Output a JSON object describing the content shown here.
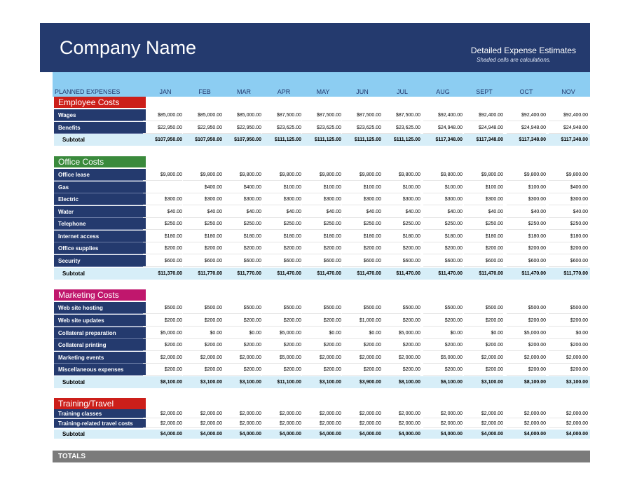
{
  "header": {
    "company": "Company Name",
    "subtitle": "Detailed Expense Estimates",
    "note": "Shaded cells are calculations."
  },
  "table": {
    "caption": "PLANNED EXPENSES",
    "months": [
      "JAN",
      "FEB",
      "MAR",
      "APR",
      "MAY",
      "JUN",
      "JUL",
      "AUG",
      "SEPT",
      "OCT",
      "NOV"
    ]
  },
  "colors": {
    "banner": "#243a6e",
    "header_band": "#8ccdf2",
    "subtotal_shade": "#d7eef8",
    "totals_bar": "#7b7b7b"
  },
  "sections": [
    {
      "title": "Employee Costs",
      "color": "#cc1f1a",
      "rows": [
        {
          "label": "Wages",
          "values": [
            "$85,000.00",
            "$85,000.00",
            "$85,000.00",
            "$87,500.00",
            "$87,500.00",
            "$87,500.00",
            "$87,500.00",
            "$92,400.00",
            "$92,400.00",
            "$92,400.00",
            "$92,400.00"
          ]
        },
        {
          "label": "Benefits",
          "values": [
            "$22,950.00",
            "$22,950.00",
            "$22,950.00",
            "$23,625.00",
            "$23,625.00",
            "$23,625.00",
            "$23,625.00",
            "$24,948.00",
            "$24,948.00",
            "$24,948.00",
            "$24,948.00"
          ]
        }
      ],
      "subtotal": {
        "label": "Subtotal",
        "values": [
          "$107,950.00",
          "$107,950.00",
          "$107,950.00",
          "$111,125.00",
          "$111,125.00",
          "$111,125.00",
          "$111,125.00",
          "$117,348.00",
          "$117,348.00",
          "$117,348.00",
          "$117,348.00"
        ]
      }
    },
    {
      "title": "Office Costs",
      "color": "#3a8a3c",
      "rows": [
        {
          "label": "Office lease",
          "values": [
            "$9,800.00",
            "$9,800.00",
            "$9,800.00",
            "$9,800.00",
            "$9,800.00",
            "$9,800.00",
            "$9,800.00",
            "$9,800.00",
            "$9,800.00",
            "$9,800.00",
            "$9,800.00"
          ]
        },
        {
          "label": "Gas",
          "values": [
            "",
            "$400.00",
            "$400.00",
            "$100.00",
            "$100.00",
            "$100.00",
            "$100.00",
            "$100.00",
            "$100.00",
            "$100.00",
            "$400.00"
          ]
        },
        {
          "label": "Electric",
          "values": [
            "$300.00",
            "$300.00",
            "$300.00",
            "$300.00",
            "$300.00",
            "$300.00",
            "$300.00",
            "$300.00",
            "$300.00",
            "$300.00",
            "$300.00"
          ]
        },
        {
          "label": "Water",
          "values": [
            "$40.00",
            "$40.00",
            "$40.00",
            "$40.00",
            "$40.00",
            "$40.00",
            "$40.00",
            "$40.00",
            "$40.00",
            "$40.00",
            "$40.00"
          ]
        },
        {
          "label": "Telephone",
          "values": [
            "$250.00",
            "$250.00",
            "$250.00",
            "$250.00",
            "$250.00",
            "$250.00",
            "$250.00",
            "$250.00",
            "$250.00",
            "$250.00",
            "$250.00"
          ]
        },
        {
          "label": "Internet access",
          "values": [
            "$180.00",
            "$180.00",
            "$180.00",
            "$180.00",
            "$180.00",
            "$180.00",
            "$180.00",
            "$180.00",
            "$180.00",
            "$180.00",
            "$180.00"
          ]
        },
        {
          "label": "Office supplies",
          "values": [
            "$200.00",
            "$200.00",
            "$200.00",
            "$200.00",
            "$200.00",
            "$200.00",
            "$200.00",
            "$200.00",
            "$200.00",
            "$200.00",
            "$200.00"
          ]
        },
        {
          "label": "Security",
          "values": [
            "$600.00",
            "$600.00",
            "$600.00",
            "$600.00",
            "$600.00",
            "$600.00",
            "$600.00",
            "$600.00",
            "$600.00",
            "$600.00",
            "$600.00"
          ]
        }
      ],
      "subtotal": {
        "label": "Subtotal",
        "values": [
          "$11,370.00",
          "$11,770.00",
          "$11,770.00",
          "$11,470.00",
          "$11,470.00",
          "$11,470.00",
          "$11,470.00",
          "$11,470.00",
          "$11,470.00",
          "$11,470.00",
          "$11,770.00"
        ]
      }
    },
    {
      "title": "Marketing Costs",
      "color": "#c0176d",
      "rows": [
        {
          "label": "Web site hosting",
          "values": [
            "$500.00",
            "$500.00",
            "$500.00",
            "$500.00",
            "$500.00",
            "$500.00",
            "$500.00",
            "$500.00",
            "$500.00",
            "$500.00",
            "$500.00"
          ]
        },
        {
          "label": "Web site updates",
          "values": [
            "$200.00",
            "$200.00",
            "$200.00",
            "$200.00",
            "$200.00",
            "$1,000.00",
            "$200.00",
            "$200.00",
            "$200.00",
            "$200.00",
            "$200.00"
          ]
        },
        {
          "label": "Collateral preparation",
          "values": [
            "$5,000.00",
            "$0.00",
            "$0.00",
            "$5,000.00",
            "$0.00",
            "$0.00",
            "$5,000.00",
            "$0.00",
            "$0.00",
            "$5,000.00",
            "$0.00"
          ]
        },
        {
          "label": "Collateral printing",
          "values": [
            "$200.00",
            "$200.00",
            "$200.00",
            "$200.00",
            "$200.00",
            "$200.00",
            "$200.00",
            "$200.00",
            "$200.00",
            "$200.00",
            "$200.00"
          ]
        },
        {
          "label": "Marketing events",
          "values": [
            "$2,000.00",
            "$2,000.00",
            "$2,000.00",
            "$5,000.00",
            "$2,000.00",
            "$2,000.00",
            "$2,000.00",
            "$5,000.00",
            "$2,000.00",
            "$2,000.00",
            "$2,000.00"
          ]
        },
        {
          "label": "Miscellaneous expenses",
          "values": [
            "$200.00",
            "$200.00",
            "$200.00",
            "$200.00",
            "$200.00",
            "$200.00",
            "$200.00",
            "$200.00",
            "$200.00",
            "$200.00",
            "$200.00"
          ]
        }
      ],
      "subtotal": {
        "label": "Subtotal",
        "values": [
          "$8,100.00",
          "$3,100.00",
          "$3,100.00",
          "$11,100.00",
          "$3,100.00",
          "$3,900.00",
          "$8,100.00",
          "$6,100.00",
          "$3,100.00",
          "$8,100.00",
          "$3,100.00"
        ]
      }
    },
    {
      "title": "Training/Travel",
      "color": "#cc1f1a",
      "rows": [
        {
          "label": "Training classes",
          "values": [
            "$2,000.00",
            "$2,000.00",
            "$2,000.00",
            "$2,000.00",
            "$2,000.00",
            "$2,000.00",
            "$2,000.00",
            "$2,000.00",
            "$2,000.00",
            "$2,000.00",
            "$2,000.00"
          ]
        },
        {
          "label": "Training-related travel costs",
          "values": [
            "$2,000.00",
            "$2,000.00",
            "$2,000.00",
            "$2,000.00",
            "$2,000.00",
            "$2,000.00",
            "$2,000.00",
            "$2,000.00",
            "$2,000.00",
            "$2,000.00",
            "$2,000.00"
          ]
        }
      ],
      "subtotal": {
        "label": "Subtotal",
        "values": [
          "$4,000.00",
          "$4,000.00",
          "$4,000.00",
          "$4,000.00",
          "$4,000.00",
          "$4,000.00",
          "$4,000.00",
          "$4,000.00",
          "$4,000.00",
          "$4,000.00",
          "$4,000.00"
        ]
      }
    }
  ],
  "totals": {
    "label": "TOTALS"
  }
}
